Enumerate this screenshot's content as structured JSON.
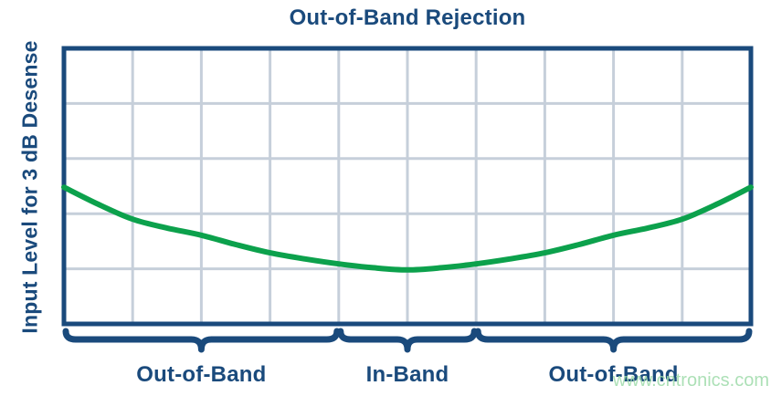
{
  "title": "Out-of-Band Rejection",
  "y_axis_label": "Input Level for 3 dB Desense",
  "watermark": "www.cntronics.com",
  "colors": {
    "background": "#ffffff",
    "navy": "#1a4a7c",
    "curve_green": "#0ca14c",
    "grid": "#c6cfda",
    "watermark_green": "#9edbaa"
  },
  "bands": [
    {
      "label": "Out-of-Band",
      "start_col": 0,
      "end_col": 4
    },
    {
      "label": "In-Band",
      "start_col": 4,
      "end_col": 6
    },
    {
      "label": "Out-of-Band",
      "start_col": 6,
      "end_col": 10
    }
  ],
  "chart_data": {
    "type": "line",
    "title": "Out-of-Band Rejection",
    "xlabel": "",
    "ylabel": "Input Level for 3 dB Desense",
    "legend": "none",
    "grid": true,
    "grid_columns": 10,
    "grid_rows": 5,
    "axis_tick_labels": "none (conceptual chart, unlabeled axes)",
    "x_units": "grid columns across frequency axis (0 = left edge, 10 = right edge)",
    "y_units": "grid rows above x-axis (relative input level)",
    "xlim": [
      0,
      10
    ],
    "ylim": [
      0,
      5
    ],
    "annotations": [
      "Out-of-Band (columns 0-4)",
      "In-Band (columns 4-6)",
      "Out-of-Band (columns 6-10)"
    ],
    "series": [
      {
        "name": "input-level-for-3db-desense",
        "color": "#0ca14c",
        "x": [
          0,
          0.5,
          1,
          1.5,
          2,
          2.5,
          3,
          3.5,
          4,
          4.5,
          5,
          5.5,
          6,
          6.5,
          7,
          7.5,
          8,
          8.5,
          9,
          9.5,
          10
        ],
        "y": [
          2.48,
          2.17,
          1.9,
          1.74,
          1.61,
          1.44,
          1.29,
          1.18,
          1.09,
          1.02,
          0.98,
          1.02,
          1.09,
          1.18,
          1.29,
          1.44,
          1.61,
          1.74,
          1.9,
          2.17,
          2.48
        ]
      }
    ]
  }
}
